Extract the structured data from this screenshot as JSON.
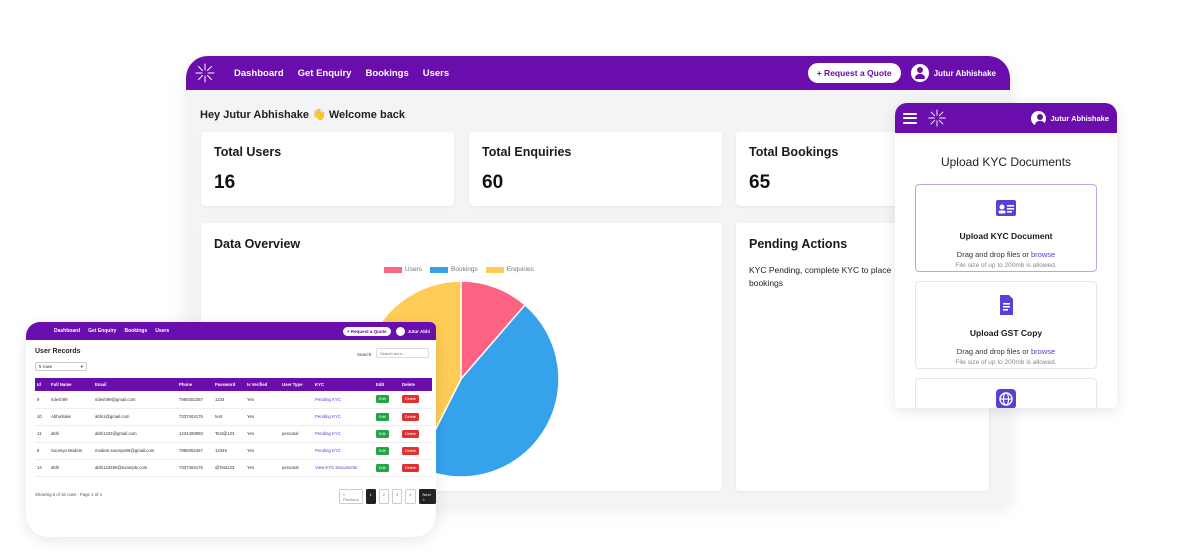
{
  "main": {
    "nav": {
      "links": [
        "Dashboard",
        "Get Enquiry",
        "Bookings",
        "Users"
      ],
      "quote_label": "+ Request a Quote",
      "user_name": "Jutur Abhishake"
    },
    "welcome": "Hey Jutur Abhishake 👋 Welcome back",
    "stats": [
      {
        "title": "Total Users",
        "value": "16"
      },
      {
        "title": "Total Enquiries",
        "value": "60"
      },
      {
        "title": "Total Bookings",
        "value": "65"
      }
    ],
    "data_overview_title": "Data Overview",
    "pending": {
      "title": "Pending Actions",
      "text": "KYC Pending, complete KYC to place bookings"
    }
  },
  "chart_data": {
    "type": "pie",
    "categories": [
      "Users",
      "Bookings",
      "Enquiries"
    ],
    "values": [
      16,
      65,
      60
    ],
    "colors": [
      "#ff6384",
      "#36a2eb",
      "#ffcd56"
    ],
    "legend": "top"
  },
  "kyc": {
    "user_name": "Jutur Abhishake",
    "title": "Upload KYC Documents",
    "boxes": [
      {
        "title": "Upload KYC Document",
        "text": "Drag and drop files or ",
        "browse": "browse",
        "note": "File size of up to 200mb is allowed."
      },
      {
        "title": "Upload GST Copy",
        "text": "Drag and drop files or ",
        "browse": "browse",
        "note": "File size of up to 200mb is allowed."
      }
    ]
  },
  "users": {
    "nav": {
      "links": [
        "Dashboard",
        "Get Enquiry",
        "Bookings",
        "Users"
      ],
      "quote_label": "+ Request a Quote",
      "user_name": "Jutur Abhi"
    },
    "heading": "User Records",
    "search_label": "Search:",
    "search_placeholder": "Search here...",
    "rows_select": "5 rows",
    "columns": [
      "Id",
      "Full Name",
      "Email",
      "Phone",
      "Password",
      "Is Verified",
      "User Type",
      "KYC",
      "Edit",
      "Delete"
    ],
    "rows": [
      [
        "9",
        "ridesh99",
        "ridesh99@gmail.com",
        "7989352267",
        "1234",
        "Yes",
        "",
        "Pending KYC"
      ],
      [
        "10",
        "Abhishake",
        "abhi1@gmail.com",
        "7337404176",
        "test",
        "Yes",
        "",
        "Pending KYC"
      ],
      [
        "11",
        "abhi",
        "abhi1234@gmail.com",
        "1234493993",
        "Test@123",
        "Yes",
        "personal",
        "Pending KYC"
      ],
      [
        "8",
        "Soumya Modem",
        "modem.soumya06@gmail.com",
        "7989352267",
        "12345",
        "Yes",
        "",
        "Pending KYC"
      ],
      [
        "14",
        "abhi",
        "abhi123456@example.com",
        "7337404176",
        "@Test123",
        "Yes",
        "personal",
        "View KYC Documents"
      ]
    ],
    "edit_label": "Edit",
    "delete_label": "Delete",
    "footer": "Showing 5 of 16 rows - Page 1 of 4",
    "pager": [
      "« Previous",
      "1",
      "2",
      "3",
      "4",
      "Next »"
    ]
  }
}
